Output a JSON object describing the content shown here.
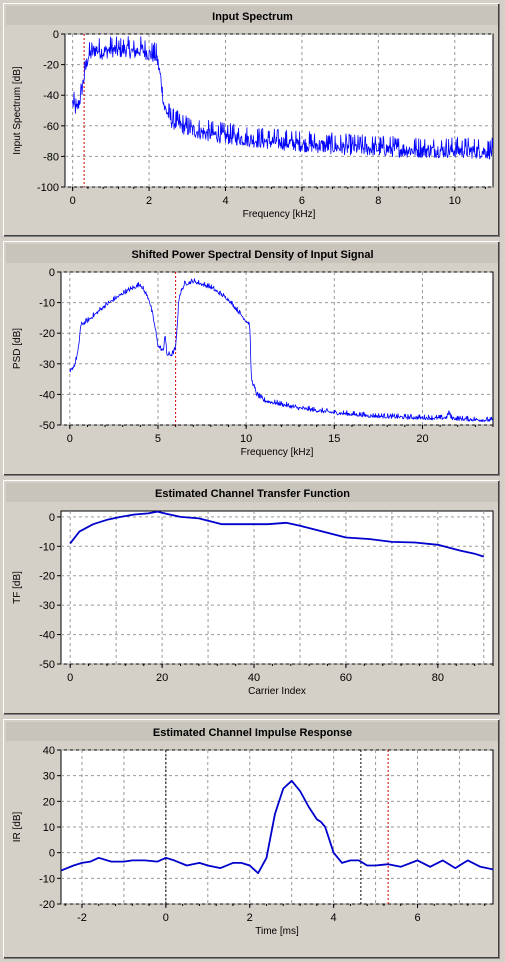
{
  "chart_data": [
    {
      "type": "line",
      "title": "Input Spectrum",
      "xlabel": "Frequency [kHz]",
      "ylabel": "Input Spectrum [dB]",
      "xlim": [
        -0.2,
        11.0
      ],
      "ylim": [
        -100,
        0
      ],
      "xticks": [
        0,
        2,
        4,
        6,
        8,
        10
      ],
      "yticks": [
        0,
        -20,
        -40,
        -60,
        -80,
        -100
      ],
      "xgrid": [
        0,
        2,
        4,
        6,
        8,
        10
      ],
      "markers": [
        {
          "x": 0.3,
          "color": "#cc0000"
        }
      ],
      "series": [
        {
          "color": "#0000ff",
          "noise": 5,
          "x": [
            0,
            0.1,
            0.2,
            0.3,
            0.4,
            0.6,
            0.8,
            1.0,
            1.2,
            1.4,
            1.6,
            1.8,
            2.0,
            2.2,
            2.3,
            2.4,
            2.6,
            3.0,
            3.5,
            4.0,
            5.0,
            6.0,
            7.0,
            8.0,
            9.0,
            10.0,
            11.0
          ],
          "y": [
            -45,
            -50,
            -42,
            -28,
            -15,
            -10,
            -12,
            -10,
            -11,
            -10,
            -12,
            -10,
            -13,
            -15,
            -28,
            -48,
            -57,
            -62,
            -65,
            -67,
            -70,
            -72,
            -74,
            -75,
            -76,
            -76,
            -77
          ]
        }
      ]
    },
    {
      "type": "line",
      "title": "Shifted Power Spectral Density of Input Signal",
      "xlabel": "Frequency [kHz]",
      "ylabel": "PSD [dB]",
      "xlim": [
        -0.5,
        24.0
      ],
      "ylim": [
        -50,
        0
      ],
      "xticks": [
        0,
        5,
        10,
        15,
        20
      ],
      "yticks": [
        0,
        -10,
        -20,
        -30,
        -40,
        -50
      ],
      "xgrid": [
        0,
        5,
        10,
        15,
        20
      ],
      "markers": [
        {
          "x": 6.0,
          "color": "#cc0000"
        }
      ],
      "series": [
        {
          "color": "#0000ff",
          "noise": 0.6,
          "x": [
            0,
            0.3,
            0.5,
            0.6,
            0.7,
            1,
            2,
            3,
            4,
            4.5,
            4.8,
            5.0,
            5.3,
            5.4,
            5.5,
            5.8,
            6.0,
            6.2,
            6.5,
            7,
            7.5,
            8,
            9,
            10,
            10.2,
            10.3,
            10.6,
            11,
            13,
            15,
            17,
            19,
            21,
            21.4,
            21.5,
            21.6,
            22,
            24
          ],
          "y": [
            -33,
            -30,
            -25,
            -18,
            -17,
            -16,
            -11,
            -7,
            -4,
            -9,
            -17,
            -24,
            -26,
            -20,
            -27,
            -27,
            -25,
            -8,
            -4,
            -3,
            -4,
            -5,
            -9,
            -16,
            -17,
            -35,
            -40,
            -42,
            -44.5,
            -46,
            -47,
            -47.5,
            -47.8,
            -47.5,
            -45.5,
            -47.6,
            -48,
            -48.5
          ]
        }
      ]
    },
    {
      "type": "line",
      "title": "Estimated Channel Transfer Function",
      "xlabel": "Carrier Index",
      "ylabel": "TF [dB]",
      "xlim": [
        -2,
        92
      ],
      "ylim": [
        -50,
        2
      ],
      "xticks": [
        0,
        20,
        40,
        60,
        80
      ],
      "yticks": [
        0,
        -10,
        -20,
        -30,
        -40,
        -50
      ],
      "xgrid": [
        0,
        10,
        20,
        30,
        40,
        50,
        60,
        70,
        80,
        90
      ],
      "markers": [],
      "series": [
        {
          "color": "#0000cc",
          "x": [
            0,
            2,
            5,
            8,
            11,
            14,
            17,
            19,
            21,
            24,
            28,
            33,
            38,
            43,
            47,
            50,
            55,
            60,
            65,
            70,
            75,
            80,
            85,
            88,
            90
          ],
          "y": [
            -9,
            -5,
            -2.5,
            -1,
            0,
            0.8,
            1.2,
            1.8,
            1,
            0,
            -0.5,
            -2.5,
            -2.5,
            -2.5,
            -2,
            -3,
            -5,
            -7,
            -7.5,
            -8.5,
            -8.7,
            -9.5,
            -11.5,
            -12.5,
            -13.5
          ]
        }
      ]
    },
    {
      "type": "line",
      "title": "Estimated Channel Impulse Response",
      "xlabel": "Time [ms]",
      "ylabel": "IR [dB]",
      "xlim": [
        -2.5,
        7.8
      ],
      "ylim": [
        -20,
        40
      ],
      "xticks": [
        -2,
        0,
        2,
        4,
        6
      ],
      "yticks": [
        40,
        30,
        20,
        10,
        0,
        -10,
        -20
      ],
      "xgrid": [
        -2,
        -1,
        0,
        1,
        2,
        3,
        4,
        5,
        6,
        7
      ],
      "markers": [
        {
          "x": 0.0,
          "color": "#000000"
        },
        {
          "x": 4.65,
          "color": "#000000"
        },
        {
          "x": 5.3,
          "color": "#cc0000"
        }
      ],
      "series": [
        {
          "color": "#0000cc",
          "x": [
            -2.5,
            -2.2,
            -2.0,
            -1.8,
            -1.6,
            -1.3,
            -1.0,
            -0.8,
            -0.5,
            -0.2,
            0,
            0.2,
            0.5,
            0.8,
            1.0,
            1.3,
            1.6,
            1.8,
            2.0,
            2.2,
            2.4,
            2.6,
            2.8,
            3.0,
            3.2,
            3.4,
            3.6,
            3.7,
            3.8,
            4.0,
            4.2,
            4.4,
            4.6,
            4.8,
            5.0,
            5.3,
            5.6,
            6.0,
            6.3,
            6.6,
            6.9,
            7.2,
            7.5,
            7.8
          ],
          "y": [
            -7,
            -5,
            -4,
            -3.5,
            -2,
            -3.5,
            -3.5,
            -3,
            -3,
            -3.5,
            -2,
            -3,
            -5,
            -4,
            -5,
            -6,
            -4,
            -4,
            -5,
            -8,
            -2,
            15,
            25,
            28,
            24,
            18,
            13,
            12,
            10,
            0,
            -4,
            -3,
            -3,
            -5,
            -5,
            -4.5,
            -5.5,
            -3,
            -5.5,
            -3,
            -6,
            -3,
            -5.5,
            -6.5
          ]
        }
      ]
    }
  ]
}
